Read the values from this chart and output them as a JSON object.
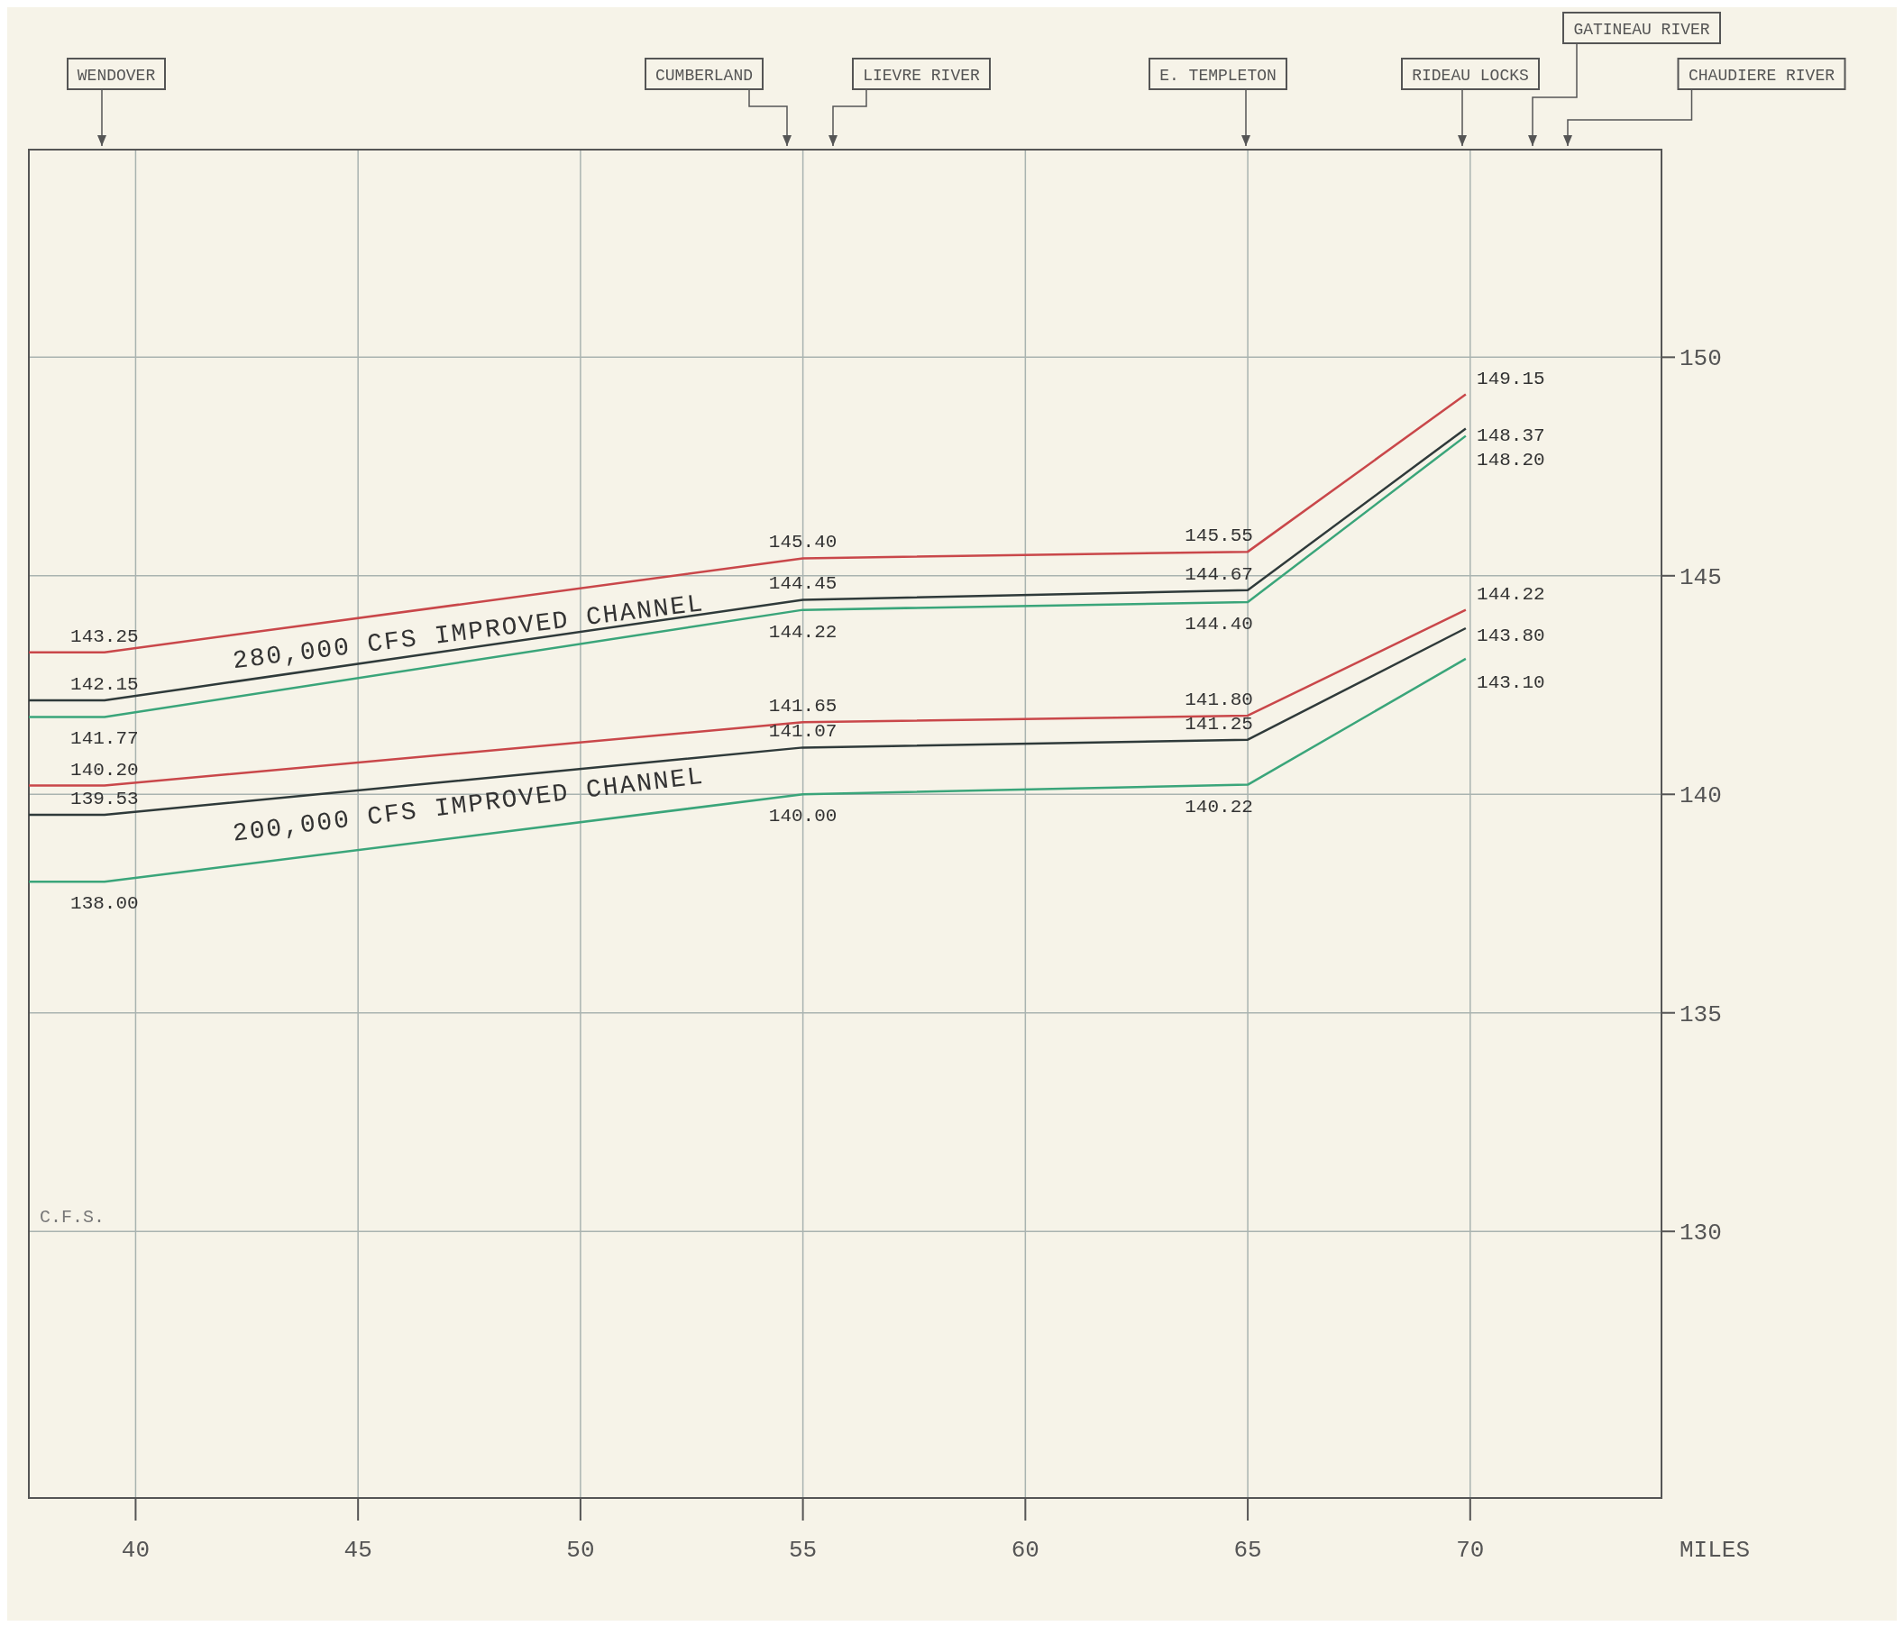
{
  "chart_data": {
    "type": "line",
    "xlabel": "MILES",
    "xlim": [
      37.6,
      74.3
    ],
    "ylim": [
      123.9,
      154.75
    ],
    "xticks": [
      40,
      45,
      50,
      55,
      60,
      65,
      70
    ],
    "yticks": [
      130,
      135,
      140,
      145,
      150
    ],
    "grid": true,
    "marker": "none",
    "line_style": "solid",
    "x": [
      37.6,
      39.3,
      55,
      65,
      69.9
    ],
    "series": [
      {
        "color": "#c9474a",
        "values": [
          143.25,
          143.25,
          145.4,
          145.55,
          149.15
        ],
        "value_labels": [
          null,
          "143.25",
          "145.40",
          "145.55",
          "149.15"
        ]
      },
      {
        "color": "#2f3a3a",
        "values": [
          142.15,
          142.15,
          144.45,
          144.67,
          148.37
        ],
        "value_labels": [
          null,
          "142.15",
          "144.45",
          "144.67",
          "148.37"
        ]
      },
      {
        "color": "#3aa57a",
        "values": [
          141.77,
          141.77,
          144.22,
          144.4,
          148.2
        ],
        "value_labels": [
          null,
          "141.77",
          "144.22",
          "144.40",
          "148.20"
        ]
      },
      {
        "color": "#c9474a",
        "values": [
          140.2,
          140.2,
          141.65,
          141.8,
          144.22
        ],
        "value_labels": [
          null,
          "140.20",
          "141.65",
          "141.80",
          "144.22"
        ]
      },
      {
        "color": "#2f3a3a",
        "values": [
          139.53,
          139.53,
          141.07,
          141.25,
          143.8
        ],
        "value_labels": [
          null,
          "139.53",
          "141.07",
          "141.25",
          "143.80"
        ]
      },
      {
        "color": "#3aa57a",
        "values": [
          138,
          138,
          140,
          140.22,
          143.1
        ],
        "value_labels": [
          null,
          "138.00",
          "140.00",
          "140.22",
          "143.10"
        ]
      }
    ],
    "annotations": [
      "WENDOVER",
      "CUMBERLAND",
      "LIEVRE RIVER",
      "E. TEMPLETON",
      "RIDEAU LOCKS",
      "GATINEAU RIVER",
      "CHAUDIERE RIVER",
      "280,000 CFS IMPROVED CHANNEL",
      "200,000 CFS IMPROVED CHANNEL",
      "C.F.S."
    ]
  }
}
